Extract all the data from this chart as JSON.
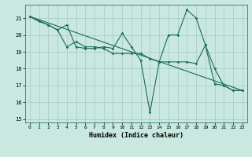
{
  "title": "",
  "xlabel": "Humidex (Indice chaleur)",
  "ylabel": "",
  "background_color": "#c8e8e0",
  "grid_color": "#a8c8c0",
  "line_color": "#1a6b5a",
  "xlim": [
    -0.5,
    23.5
  ],
  "ylim": [
    14.8,
    21.8
  ],
  "xticks": [
    0,
    1,
    2,
    3,
    4,
    5,
    6,
    7,
    8,
    9,
    10,
    11,
    12,
    13,
    14,
    15,
    16,
    17,
    18,
    19,
    20,
    21,
    22,
    23
  ],
  "yticks": [
    15,
    16,
    17,
    18,
    19,
    20,
    21
  ],
  "line1_x": [
    0,
    1,
    2,
    3,
    4,
    5,
    6,
    7,
    8,
    9,
    10,
    11,
    12,
    13,
    14,
    15,
    16,
    17,
    18,
    19,
    20,
    21,
    22,
    23
  ],
  "line1_y": [
    21.1,
    20.8,
    20.6,
    20.3,
    19.3,
    19.6,
    19.3,
    19.3,
    19.2,
    18.9,
    18.9,
    18.9,
    18.9,
    18.6,
    18.4,
    18.4,
    18.4,
    18.4,
    18.3,
    19.4,
    17.1,
    17.0,
    16.7,
    16.7
  ],
  "line2_x": [
    0,
    2,
    3,
    4,
    5,
    6,
    7,
    8,
    9,
    10,
    11,
    12,
    13,
    14,
    15,
    16,
    17,
    18,
    19,
    20,
    21,
    22,
    23
  ],
  "line2_y": [
    21.1,
    20.6,
    20.3,
    20.6,
    19.3,
    19.2,
    19.2,
    19.3,
    19.2,
    20.1,
    19.3,
    18.5,
    15.4,
    18.4,
    20.0,
    20.0,
    21.5,
    21.0,
    19.4,
    18.0,
    17.0,
    16.7,
    16.7
  ],
  "line3_x": [
    0,
    23
  ],
  "line3_y": [
    21.1,
    16.7
  ]
}
